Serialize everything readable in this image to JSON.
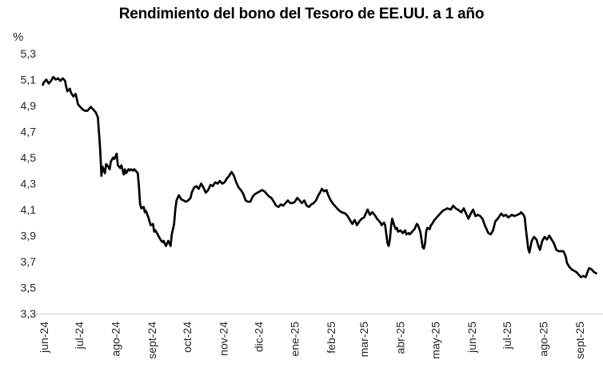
{
  "title": "Rendimiento del bono del Tesoro de EE.UU. a 1 año",
  "chart_data": {
    "type": "line",
    "title": "Rendimiento del bono del Tesoro de EE.UU. a 1 año",
    "ylabel": "%",
    "grid": false,
    "legend": "none",
    "line_color": "#000000",
    "axis_line_color": "#d9d9d9",
    "text_color": "#262626",
    "y_axis": {
      "min": 3.3,
      "max": 5.3,
      "step": 0.2,
      "tick_labels": [
        "5,3",
        "5,1",
        "4,9",
        "4,7",
        "4,5",
        "4,3",
        "4,1",
        "3,9",
        "3,7",
        "3,5",
        "3,3"
      ]
    },
    "x_axis": {
      "unit": "days since 2024-06-01",
      "tick_labels": [
        "jun-24",
        "jul-24",
        "ago-24",
        "sept-24",
        "oct-24",
        "nov-24",
        "dic-24",
        "ene-25",
        "feb-25",
        "mar-25",
        "abr-25",
        "may-25",
        "jun-25",
        "jul-25",
        "ago-25",
        "sept-25"
      ],
      "tick_day_offsets": [
        0,
        30,
        61,
        92,
        122,
        153,
        183,
        214,
        245,
        273,
        304,
        334,
        365,
        395,
        426,
        457
      ]
    },
    "series": [
      {
        "name": "Rendimiento del bono del Tesoro de EE.UU. a 1 año (%)",
        "points": [
          [
            -1,
            5.06
          ],
          [
            0,
            5.08
          ],
          [
            2,
            5.1
          ],
          [
            4,
            5.07
          ],
          [
            6,
            5.09
          ],
          [
            8,
            5.12
          ],
          [
            10,
            5.1
          ],
          [
            12,
            5.11
          ],
          [
            14,
            5.09
          ],
          [
            16,
            5.11
          ],
          [
            18,
            5.09
          ],
          [
            19,
            5.04
          ],
          [
            20,
            5.01
          ],
          [
            22,
            5.03
          ],
          [
            23,
            5.0
          ],
          [
            25,
            4.97
          ],
          [
            27,
            4.99
          ],
          [
            28,
            4.95
          ],
          [
            29,
            4.91
          ],
          [
            31,
            4.89
          ],
          [
            33,
            4.87
          ],
          [
            35,
            4.86
          ],
          [
            37,
            4.86
          ],
          [
            38,
            4.87
          ],
          [
            40,
            4.89
          ],
          [
            42,
            4.87
          ],
          [
            44,
            4.85
          ],
          [
            45,
            4.83
          ],
          [
            46,
            4.81
          ],
          [
            48,
            4.55
          ],
          [
            49,
            4.36
          ],
          [
            50,
            4.43
          ],
          [
            52,
            4.38
          ],
          [
            53,
            4.45
          ],
          [
            55,
            4.43
          ],
          [
            56,
            4.41
          ],
          [
            57,
            4.47
          ],
          [
            59,
            4.5
          ],
          [
            60,
            4.49
          ],
          [
            62,
            4.53
          ],
          [
            63,
            4.44
          ],
          [
            65,
            4.42
          ],
          [
            66,
            4.44
          ],
          [
            68,
            4.37
          ],
          [
            69,
            4.41
          ],
          [
            70,
            4.38
          ],
          [
            72,
            4.41
          ],
          [
            73,
            4.4
          ],
          [
            74,
            4.41
          ],
          [
            76,
            4.4
          ],
          [
            77,
            4.41
          ],
          [
            78,
            4.4
          ],
          [
            80,
            4.38
          ],
          [
            81,
            4.27
          ],
          [
            82,
            4.14
          ],
          [
            83,
            4.11
          ],
          [
            85,
            4.12
          ],
          [
            86,
            4.08
          ],
          [
            87,
            4.09
          ],
          [
            89,
            4.04
          ],
          [
            90,
            4.01
          ],
          [
            91,
            3.98
          ],
          [
            93,
            3.99
          ],
          [
            94,
            3.93
          ],
          [
            95,
            3.94
          ],
          [
            97,
            3.91
          ],
          [
            98,
            3.89
          ],
          [
            100,
            3.86
          ],
          [
            101,
            3.85
          ],
          [
            102,
            3.86
          ],
          [
            104,
            3.82
          ],
          [
            105,
            3.84
          ],
          [
            106,
            3.86
          ],
          [
            108,
            3.82
          ],
          [
            109,
            3.91
          ],
          [
            111,
            3.99
          ],
          [
            112,
            4.1
          ],
          [
            113,
            4.17
          ],
          [
            115,
            4.21
          ],
          [
            117,
            4.18
          ],
          [
            119,
            4.17
          ],
          [
            121,
            4.16
          ],
          [
            123,
            4.17
          ],
          [
            125,
            4.19
          ],
          [
            126,
            4.23
          ],
          [
            128,
            4.27
          ],
          [
            130,
            4.28
          ],
          [
            132,
            4.26
          ],
          [
            134,
            4.3
          ],
          [
            136,
            4.27
          ],
          [
            138,
            4.23
          ],
          [
            140,
            4.25
          ],
          [
            142,
            4.29
          ],
          [
            144,
            4.28
          ],
          [
            146,
            4.31
          ],
          [
            148,
            4.3
          ],
          [
            150,
            4.32
          ],
          [
            152,
            4.3
          ],
          [
            154,
            4.31
          ],
          [
            156,
            4.34
          ],
          [
            158,
            4.36
          ],
          [
            160,
            4.39
          ],
          [
            162,
            4.36
          ],
          [
            164,
            4.31
          ],
          [
            166,
            4.27
          ],
          [
            168,
            4.25
          ],
          [
            170,
            4.22
          ],
          [
            172,
            4.17
          ],
          [
            174,
            4.16
          ],
          [
            176,
            4.16
          ],
          [
            178,
            4.2
          ],
          [
            180,
            4.22
          ],
          [
            182,
            4.23
          ],
          [
            184,
            4.24
          ],
          [
            186,
            4.25
          ],
          [
            188,
            4.24
          ],
          [
            190,
            4.22
          ],
          [
            192,
            4.2
          ],
          [
            194,
            4.19
          ],
          [
            196,
            4.16
          ],
          [
            198,
            4.13
          ],
          [
            200,
            4.12
          ],
          [
            202,
            4.14
          ],
          [
            204,
            4.13
          ],
          [
            206,
            4.15
          ],
          [
            208,
            4.17
          ],
          [
            210,
            4.15
          ],
          [
            212,
            4.15
          ],
          [
            214,
            4.16
          ],
          [
            216,
            4.19
          ],
          [
            218,
            4.17
          ],
          [
            220,
            4.15
          ],
          [
            222,
            4.17
          ],
          [
            224,
            4.13
          ],
          [
            226,
            4.12
          ],
          [
            228,
            4.14
          ],
          [
            230,
            4.15
          ],
          [
            232,
            4.17
          ],
          [
            234,
            4.21
          ],
          [
            236,
            4.24
          ],
          [
            237,
            4.26
          ],
          [
            239,
            4.24
          ],
          [
            241,
            4.25
          ],
          [
            242,
            4.22
          ],
          [
            244,
            4.18
          ],
          [
            246,
            4.15
          ],
          [
            248,
            4.13
          ],
          [
            250,
            4.11
          ],
          [
            252,
            4.09
          ],
          [
            254,
            4.08
          ],
          [
            257,
            4.07
          ],
          [
            259,
            4.05
          ],
          [
            261,
            4.02
          ],
          [
            263,
            3.99
          ],
          [
            265,
            4.02
          ],
          [
            267,
            3.98
          ],
          [
            269,
            4.01
          ],
          [
            271,
            4.03
          ],
          [
            273,
            4.04
          ],
          [
            275,
            4.08
          ],
          [
            276,
            4.1
          ],
          [
            278,
            4.06
          ],
          [
            280,
            4.08
          ],
          [
            282,
            4.06
          ],
          [
            284,
            4.03
          ],
          [
            287,
            4.0
          ],
          [
            288,
            3.98
          ],
          [
            290,
            4.0
          ],
          [
            291,
            3.98
          ],
          [
            292,
            3.91
          ],
          [
            293,
            3.84
          ],
          [
            294,
            3.82
          ],
          [
            295,
            3.87
          ],
          [
            296,
            3.97
          ],
          [
            297,
            4.03
          ],
          [
            299,
            3.97
          ],
          [
            300,
            3.95
          ],
          [
            301,
            3.96
          ],
          [
            302,
            3.93
          ],
          [
            304,
            3.94
          ],
          [
            306,
            3.92
          ],
          [
            308,
            3.94
          ],
          [
            309,
            3.91
          ],
          [
            311,
            3.92
          ],
          [
            312,
            3.91
          ],
          [
            314,
            3.93
          ],
          [
            316,
            3.95
          ],
          [
            318,
            3.99
          ],
          [
            319,
            3.98
          ],
          [
            321,
            3.93
          ],
          [
            322,
            3.87
          ],
          [
            323,
            3.81
          ],
          [
            324,
            3.8
          ],
          [
            325,
            3.84
          ],
          [
            326,
            3.93
          ],
          [
            327,
            3.96
          ],
          [
            329,
            3.95
          ],
          [
            330,
            3.98
          ],
          [
            331,
            3.99
          ],
          [
            333,
            4.02
          ],
          [
            334,
            4.03
          ],
          [
            336,
            4.05
          ],
          [
            338,
            4.07
          ],
          [
            340,
            4.09
          ],
          [
            342,
            4.1
          ],
          [
            344,
            4.11
          ],
          [
            347,
            4.1
          ],
          [
            349,
            4.13
          ],
          [
            351,
            4.11
          ],
          [
            353,
            4.1
          ],
          [
            356,
            4.08
          ],
          [
            358,
            4.11
          ],
          [
            360,
            4.07
          ],
          [
            362,
            4.03
          ],
          [
            364,
            4.07
          ],
          [
            366,
            4.1
          ],
          [
            368,
            4.05
          ],
          [
            370,
            4.06
          ],
          [
            372,
            4.05
          ],
          [
            374,
            4.03
          ],
          [
            376,
            3.98
          ],
          [
            379,
            3.92
          ],
          [
            381,
            3.91
          ],
          [
            383,
            3.94
          ],
          [
            385,
            4.01
          ],
          [
            387,
            4.03
          ],
          [
            390,
            4.07
          ],
          [
            392,
            4.05
          ],
          [
            394,
            4.06
          ],
          [
            396,
            4.04
          ],
          [
            399,
            4.06
          ],
          [
            401,
            4.05
          ],
          [
            404,
            4.06
          ],
          [
            406,
            4.07
          ],
          [
            407,
            4.08
          ],
          [
            409,
            4.06
          ],
          [
            410,
            4.04
          ],
          [
            411,
            3.95
          ],
          [
            413,
            3.8
          ],
          [
            414,
            3.77
          ],
          [
            416,
            3.86
          ],
          [
            418,
            3.89
          ],
          [
            420,
            3.87
          ],
          [
            422,
            3.81
          ],
          [
            423,
            3.79
          ],
          [
            425,
            3.86
          ],
          [
            427,
            3.89
          ],
          [
            429,
            3.87
          ],
          [
            431,
            3.9
          ],
          [
            433,
            3.87
          ],
          [
            435,
            3.84
          ],
          [
            437,
            3.79
          ],
          [
            439,
            3.78
          ],
          [
            441,
            3.78
          ],
          [
            443,
            3.78
          ],
          [
            445,
            3.74
          ],
          [
            446,
            3.69
          ],
          [
            448,
            3.66
          ],
          [
            450,
            3.64
          ],
          [
            452,
            3.63
          ],
          [
            454,
            3.62
          ],
          [
            456,
            3.6
          ],
          [
            458,
            3.58
          ],
          [
            460,
            3.59
          ],
          [
            462,
            3.58
          ],
          [
            464,
            3.63
          ],
          [
            465,
            3.65
          ],
          [
            467,
            3.64
          ],
          [
            469,
            3.62
          ],
          [
            471,
            3.61
          ]
        ]
      }
    ]
  }
}
